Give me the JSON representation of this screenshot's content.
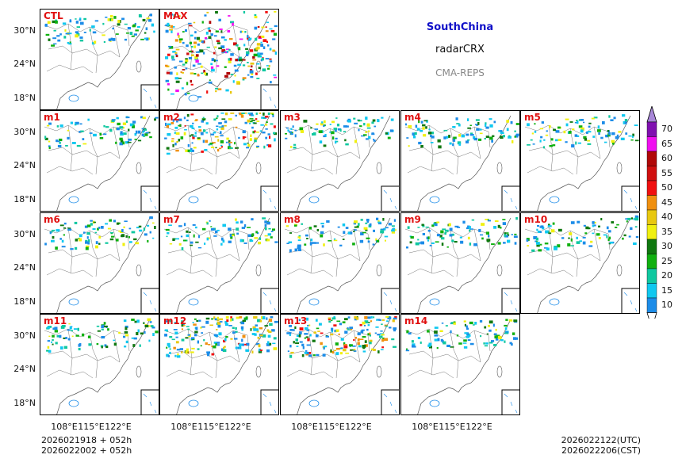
{
  "title": {
    "region": "SouthChina",
    "variable": "radarCRX",
    "model": "CMA-REPS"
  },
  "panels": [
    {
      "label": "CTL",
      "intensity": 1
    },
    {
      "label": "MAX",
      "intensity": 3
    },
    {
      "label": "m1",
      "intensity": 1
    },
    {
      "label": "m2",
      "intensity": 2
    },
    {
      "label": "m3",
      "intensity": 1
    },
    {
      "label": "m4",
      "intensity": 1
    },
    {
      "label": "m5",
      "intensity": 1
    },
    {
      "label": "m6",
      "intensity": 1
    },
    {
      "label": "m7",
      "intensity": 1
    },
    {
      "label": "m8",
      "intensity": 1
    },
    {
      "label": "m9",
      "intensity": 1
    },
    {
      "label": "m10",
      "intensity": 1
    },
    {
      "label": "m11",
      "intensity": 1
    },
    {
      "label": "m12",
      "intensity": 2
    },
    {
      "label": "m13",
      "intensity": 2
    },
    {
      "label": "m14",
      "intensity": 1
    }
  ],
  "axes": {
    "lat_labels": [
      "30°N",
      "24°N",
      "18°N"
    ],
    "lon_labels": [
      "108°E",
      "115°E",
      "122°E"
    ]
  },
  "colorbar": {
    "levels": [
      "10",
      "15",
      "20",
      "25",
      "30",
      "35",
      "40",
      "45",
      "50",
      "55",
      "60",
      "65",
      "70"
    ],
    "colors": [
      "#1c8ce8",
      "#10c8f0",
      "#10c8a0",
      "#10b010",
      "#107810",
      "#f0f010",
      "#e8c810",
      "#f09010",
      "#f01010",
      "#d01010",
      "#b00808",
      "#f010f0",
      "#8010b0",
      "#a888d8"
    ]
  },
  "footer": {
    "init_utc": "2026021918  +  052h",
    "init_cst": "2026022002  +  052h",
    "valid_utc": "2026022122(UTC)",
    "valid_cst": "2026022206(CST)"
  }
}
